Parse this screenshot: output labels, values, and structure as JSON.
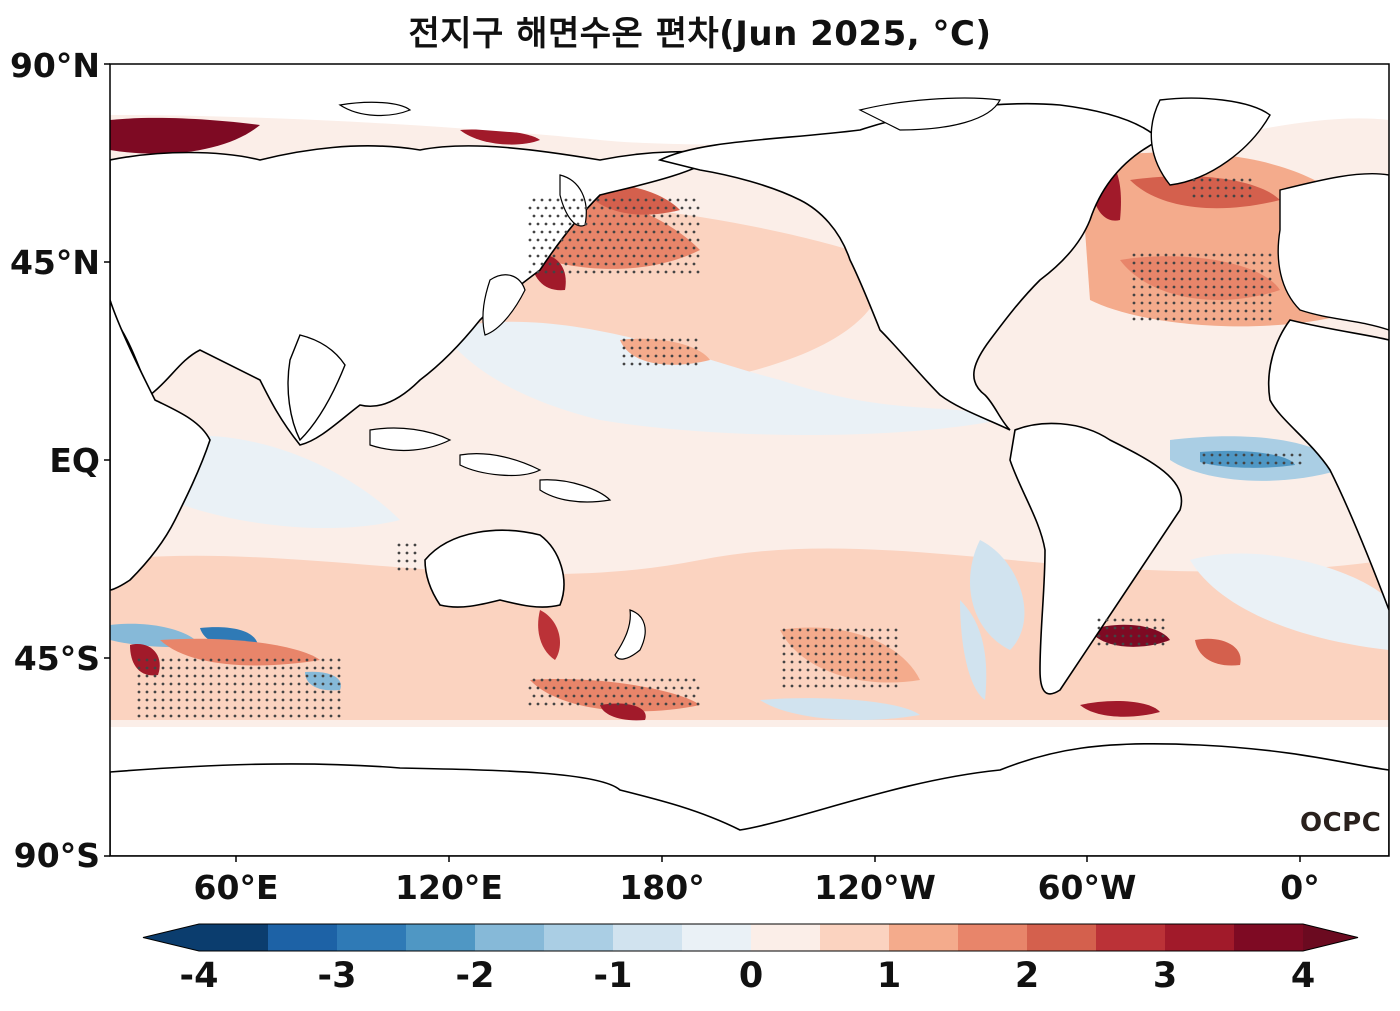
{
  "title": "전지구 해면수온 편차(Jun 2025, °C)",
  "y_axis": {
    "ticks": [
      "90°N",
      "45°N",
      "EQ",
      "45°S",
      "90°S"
    ]
  },
  "x_axis": {
    "ticks": [
      "60°E",
      "120°E",
      "180°",
      "120°W",
      "60°W",
      "0°"
    ]
  },
  "colorbar": {
    "ticks": [
      "-4",
      "-3",
      "-2",
      "-1",
      "0",
      "1",
      "2",
      "3",
      "4"
    ],
    "levels": [
      -4,
      -3.5,
      -3,
      -2.5,
      -2,
      -1.5,
      -1,
      -0.5,
      0,
      0.5,
      1,
      1.5,
      2,
      2.5,
      3,
      3.5,
      4
    ],
    "colors": [
      "#0b3d6e",
      "#1d62a6",
      "#2f7ab6",
      "#4f97c4",
      "#86b9d8",
      "#aacee4",
      "#d1e3ef",
      "#eaf1f6",
      "#fbeee8",
      "#fbd3c0",
      "#f4ab8c",
      "#e8856a",
      "#d4604d",
      "#bb3237",
      "#a11a2a",
      "#7e0a23"
    ],
    "under_color": "#0b3d6e",
    "over_color": "#6b0a20",
    "extend": "both"
  },
  "logo": {
    "text": "OCPC"
  },
  "map": {
    "projection": "PlateCarree",
    "central_longitude": "180°",
    "land_color": "#ffffff",
    "coastline_color": "#000000",
    "stippling": "significance dots"
  }
}
